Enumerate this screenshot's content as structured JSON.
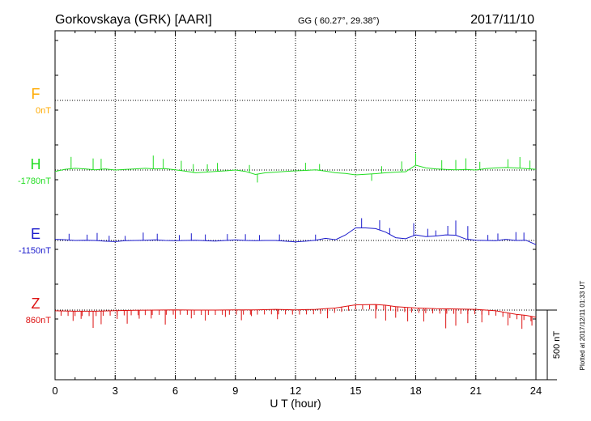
{
  "header": {
    "station": "Gorkovskaya (GRK)  [AARI]",
    "coords": "GG ( 60.27°,  29.38°)",
    "date": "2017/11/10"
  },
  "footer": {
    "plotted": "Plotted at 2017/12/11 01:33 UT"
  },
  "chart_data": {
    "type": "line",
    "xlabel": "U T (hour)",
    "xlim": [
      0,
      24
    ],
    "x_ticks": [
      "0",
      "3",
      "6",
      "9",
      "12",
      "15",
      "18",
      "21",
      "24"
    ],
    "grid": true,
    "scale_bar": {
      "label": "500 nT",
      "value": 500
    },
    "series": [
      {
        "name": "F",
        "baseline_label": "0nT",
        "color": "#ffaa00",
        "baseline_value": 0,
        "points": []
      },
      {
        "name": "H",
        "baseline_label": "-1780nT",
        "color": "#22dd22",
        "baseline_value": -1780,
        "points": [
          [
            0,
            -1790
          ],
          [
            0.5,
            -1775
          ],
          [
            1,
            -1768
          ],
          [
            1.5,
            -1772
          ],
          [
            2,
            -1778
          ],
          [
            2.5,
            -1772
          ],
          [
            3,
            -1780
          ],
          [
            3.5,
            -1776
          ],
          [
            4,
            -1772
          ],
          [
            4.5,
            -1768
          ],
          [
            5,
            -1772
          ],
          [
            5.5,
            -1770
          ],
          [
            6,
            -1778
          ],
          [
            6.5,
            -1788
          ],
          [
            7,
            -1800
          ],
          [
            7.5,
            -1795
          ],
          [
            8,
            -1790
          ],
          [
            8.5,
            -1786
          ],
          [
            9,
            -1780
          ],
          [
            9.5,
            -1790
          ],
          [
            10,
            -1812
          ],
          [
            10.5,
            -1800
          ],
          [
            11,
            -1795
          ],
          [
            11.5,
            -1790
          ],
          [
            12,
            -1786
          ],
          [
            12.5,
            -1783
          ],
          [
            13,
            -1778
          ],
          [
            13.5,
            -1788
          ],
          [
            14,
            -1800
          ],
          [
            14.5,
            -1805
          ],
          [
            15,
            -1815
          ],
          [
            15.5,
            -1810
          ],
          [
            16,
            -1806
          ],
          [
            16.5,
            -1800
          ],
          [
            17,
            -1795
          ],
          [
            17.5,
            -1792
          ],
          [
            18,
            -1745
          ],
          [
            18.5,
            -1765
          ],
          [
            19,
            -1772
          ],
          [
            19.5,
            -1776
          ],
          [
            20,
            -1778
          ],
          [
            20.5,
            -1776
          ],
          [
            21,
            -1780
          ],
          [
            21.5,
            -1770
          ],
          [
            22,
            -1765
          ],
          [
            22.5,
            -1762
          ],
          [
            23,
            -1765
          ],
          [
            23.5,
            -1770
          ],
          [
            24,
            -1775
          ]
        ],
        "spikes": [
          [
            0.8,
            85
          ],
          [
            1.9,
            80
          ],
          [
            2.3,
            75
          ],
          [
            4.9,
            95
          ],
          [
            5.4,
            70
          ],
          [
            6.3,
            70
          ],
          [
            6.9,
            60
          ],
          [
            7.6,
            55
          ],
          [
            8.1,
            60
          ],
          [
            9.7,
            55
          ],
          [
            10.1,
            -60
          ],
          [
            12.5,
            55
          ],
          [
            13.2,
            45
          ],
          [
            15.8,
            -50
          ],
          [
            16.3,
            50
          ],
          [
            17.3,
            75
          ],
          [
            18.0,
            85
          ],
          [
            19.3,
            65
          ],
          [
            20.0,
            70
          ],
          [
            20.5,
            80
          ],
          [
            21.2,
            55
          ],
          [
            22.6,
            60
          ],
          [
            23.2,
            80
          ],
          [
            23.7,
            60
          ]
        ]
      },
      {
        "name": "E",
        "baseline_label": "-1150nT",
        "color": "#1a1acc",
        "baseline_value": -1150,
        "points": [
          [
            0,
            -1142
          ],
          [
            0.5,
            -1145
          ],
          [
            1,
            -1150
          ],
          [
            1.5,
            -1148
          ],
          [
            2,
            -1150
          ],
          [
            2.5,
            -1155
          ],
          [
            3,
            -1158
          ],
          [
            3.5,
            -1152
          ],
          [
            4,
            -1150
          ],
          [
            4.5,
            -1148
          ],
          [
            5,
            -1146
          ],
          [
            5.5,
            -1150
          ],
          [
            6,
            -1152
          ],
          [
            6.5,
            -1150
          ],
          [
            7,
            -1148
          ],
          [
            7.5,
            -1152
          ],
          [
            8,
            -1154
          ],
          [
            8.5,
            -1150
          ],
          [
            9,
            -1146
          ],
          [
            9.5,
            -1150
          ],
          [
            10,
            -1152
          ],
          [
            10.5,
            -1150
          ],
          [
            11,
            -1150
          ],
          [
            11.5,
            -1155
          ],
          [
            12,
            -1160
          ],
          [
            12.5,
            -1155
          ],
          [
            13,
            -1148
          ],
          [
            13.5,
            -1135
          ],
          [
            14,
            -1145
          ],
          [
            14.5,
            -1110
          ],
          [
            15,
            -1060
          ],
          [
            15.5,
            -1060
          ],
          [
            16,
            -1065
          ],
          [
            16.5,
            -1090
          ],
          [
            17,
            -1130
          ],
          [
            17.5,
            -1138
          ],
          [
            18,
            -1110
          ],
          [
            18.5,
            -1122
          ],
          [
            19,
            -1118
          ],
          [
            19.5,
            -1110
          ],
          [
            20,
            -1112
          ],
          [
            20.5,
            -1140
          ],
          [
            21,
            -1148
          ],
          [
            21.5,
            -1150
          ],
          [
            22,
            -1152
          ],
          [
            22.5,
            -1142
          ],
          [
            23,
            -1150
          ],
          [
            23.5,
            -1148
          ],
          [
            24,
            -1180
          ]
        ],
        "spikes": [
          [
            0.7,
            45
          ],
          [
            1.6,
            40
          ],
          [
            2.1,
            55
          ],
          [
            2.7,
            40
          ],
          [
            3.5,
            35
          ],
          [
            4.4,
            55
          ],
          [
            5.1,
            45
          ],
          [
            6.2,
            40
          ],
          [
            6.8,
            50
          ],
          [
            7.5,
            45
          ],
          [
            8.6,
            45
          ],
          [
            9.5,
            45
          ],
          [
            10.2,
            40
          ],
          [
            11.2,
            45
          ],
          [
            13.0,
            40
          ],
          [
            15.3,
            70
          ],
          [
            16.2,
            70
          ],
          [
            16.7,
            45
          ],
          [
            17.9,
            90
          ],
          [
            18.6,
            55
          ],
          [
            19.0,
            40
          ],
          [
            19.6,
            65
          ],
          [
            20.0,
            105
          ],
          [
            20.6,
            95
          ],
          [
            21.6,
            40
          ],
          [
            22.1,
            50
          ],
          [
            23.0,
            60
          ],
          [
            23.4,
            55
          ]
        ]
      },
      {
        "name": "Z",
        "baseline_label": "860nT",
        "color": "#dd1111",
        "baseline_value": 860,
        "points": [
          [
            0,
            855
          ],
          [
            1,
            852
          ],
          [
            2,
            852
          ],
          [
            3,
            856
          ],
          [
            4,
            858
          ],
          [
            5,
            860
          ],
          [
            6,
            862
          ],
          [
            7,
            860
          ],
          [
            8,
            860
          ],
          [
            9,
            862
          ],
          [
            10,
            862
          ],
          [
            11,
            865
          ],
          [
            12,
            862
          ],
          [
            13,
            865
          ],
          [
            14,
            875
          ],
          [
            15,
            898
          ],
          [
            16,
            900
          ],
          [
            16.5,
            895
          ],
          [
            17,
            885
          ],
          [
            18,
            875
          ],
          [
            19,
            870
          ],
          [
            20,
            868
          ],
          [
            21,
            865
          ],
          [
            22,
            855
          ],
          [
            23,
            830
          ],
          [
            23.5,
            822
          ],
          [
            24,
            808
          ]
        ],
        "spikes": [
          [
            0.9,
            -70
          ],
          [
            1.3,
            -55
          ],
          [
            1.9,
            -120
          ],
          [
            2.3,
            -95
          ],
          [
            3.1,
            -60
          ],
          [
            3.6,
            -95
          ],
          [
            4.2,
            -60
          ],
          [
            4.8,
            -60
          ],
          [
            5.5,
            -105
          ],
          [
            6.0,
            -65
          ],
          [
            6.8,
            -60
          ],
          [
            7.5,
            -75
          ],
          [
            8.5,
            -50
          ],
          [
            9.3,
            -75
          ],
          [
            9.8,
            -45
          ],
          [
            11.1,
            -70
          ],
          [
            13.6,
            -70
          ],
          [
            16.0,
            -100
          ],
          [
            16.5,
            -110
          ],
          [
            17.0,
            -80
          ],
          [
            17.6,
            -100
          ],
          [
            18.4,
            -95
          ],
          [
            19.5,
            -140
          ],
          [
            20.0,
            -120
          ],
          [
            20.6,
            -100
          ],
          [
            21.3,
            -90
          ],
          [
            22.6,
            -90
          ],
          [
            23.3,
            -100
          ],
          [
            23.8,
            -65
          ]
        ]
      }
    ]
  }
}
